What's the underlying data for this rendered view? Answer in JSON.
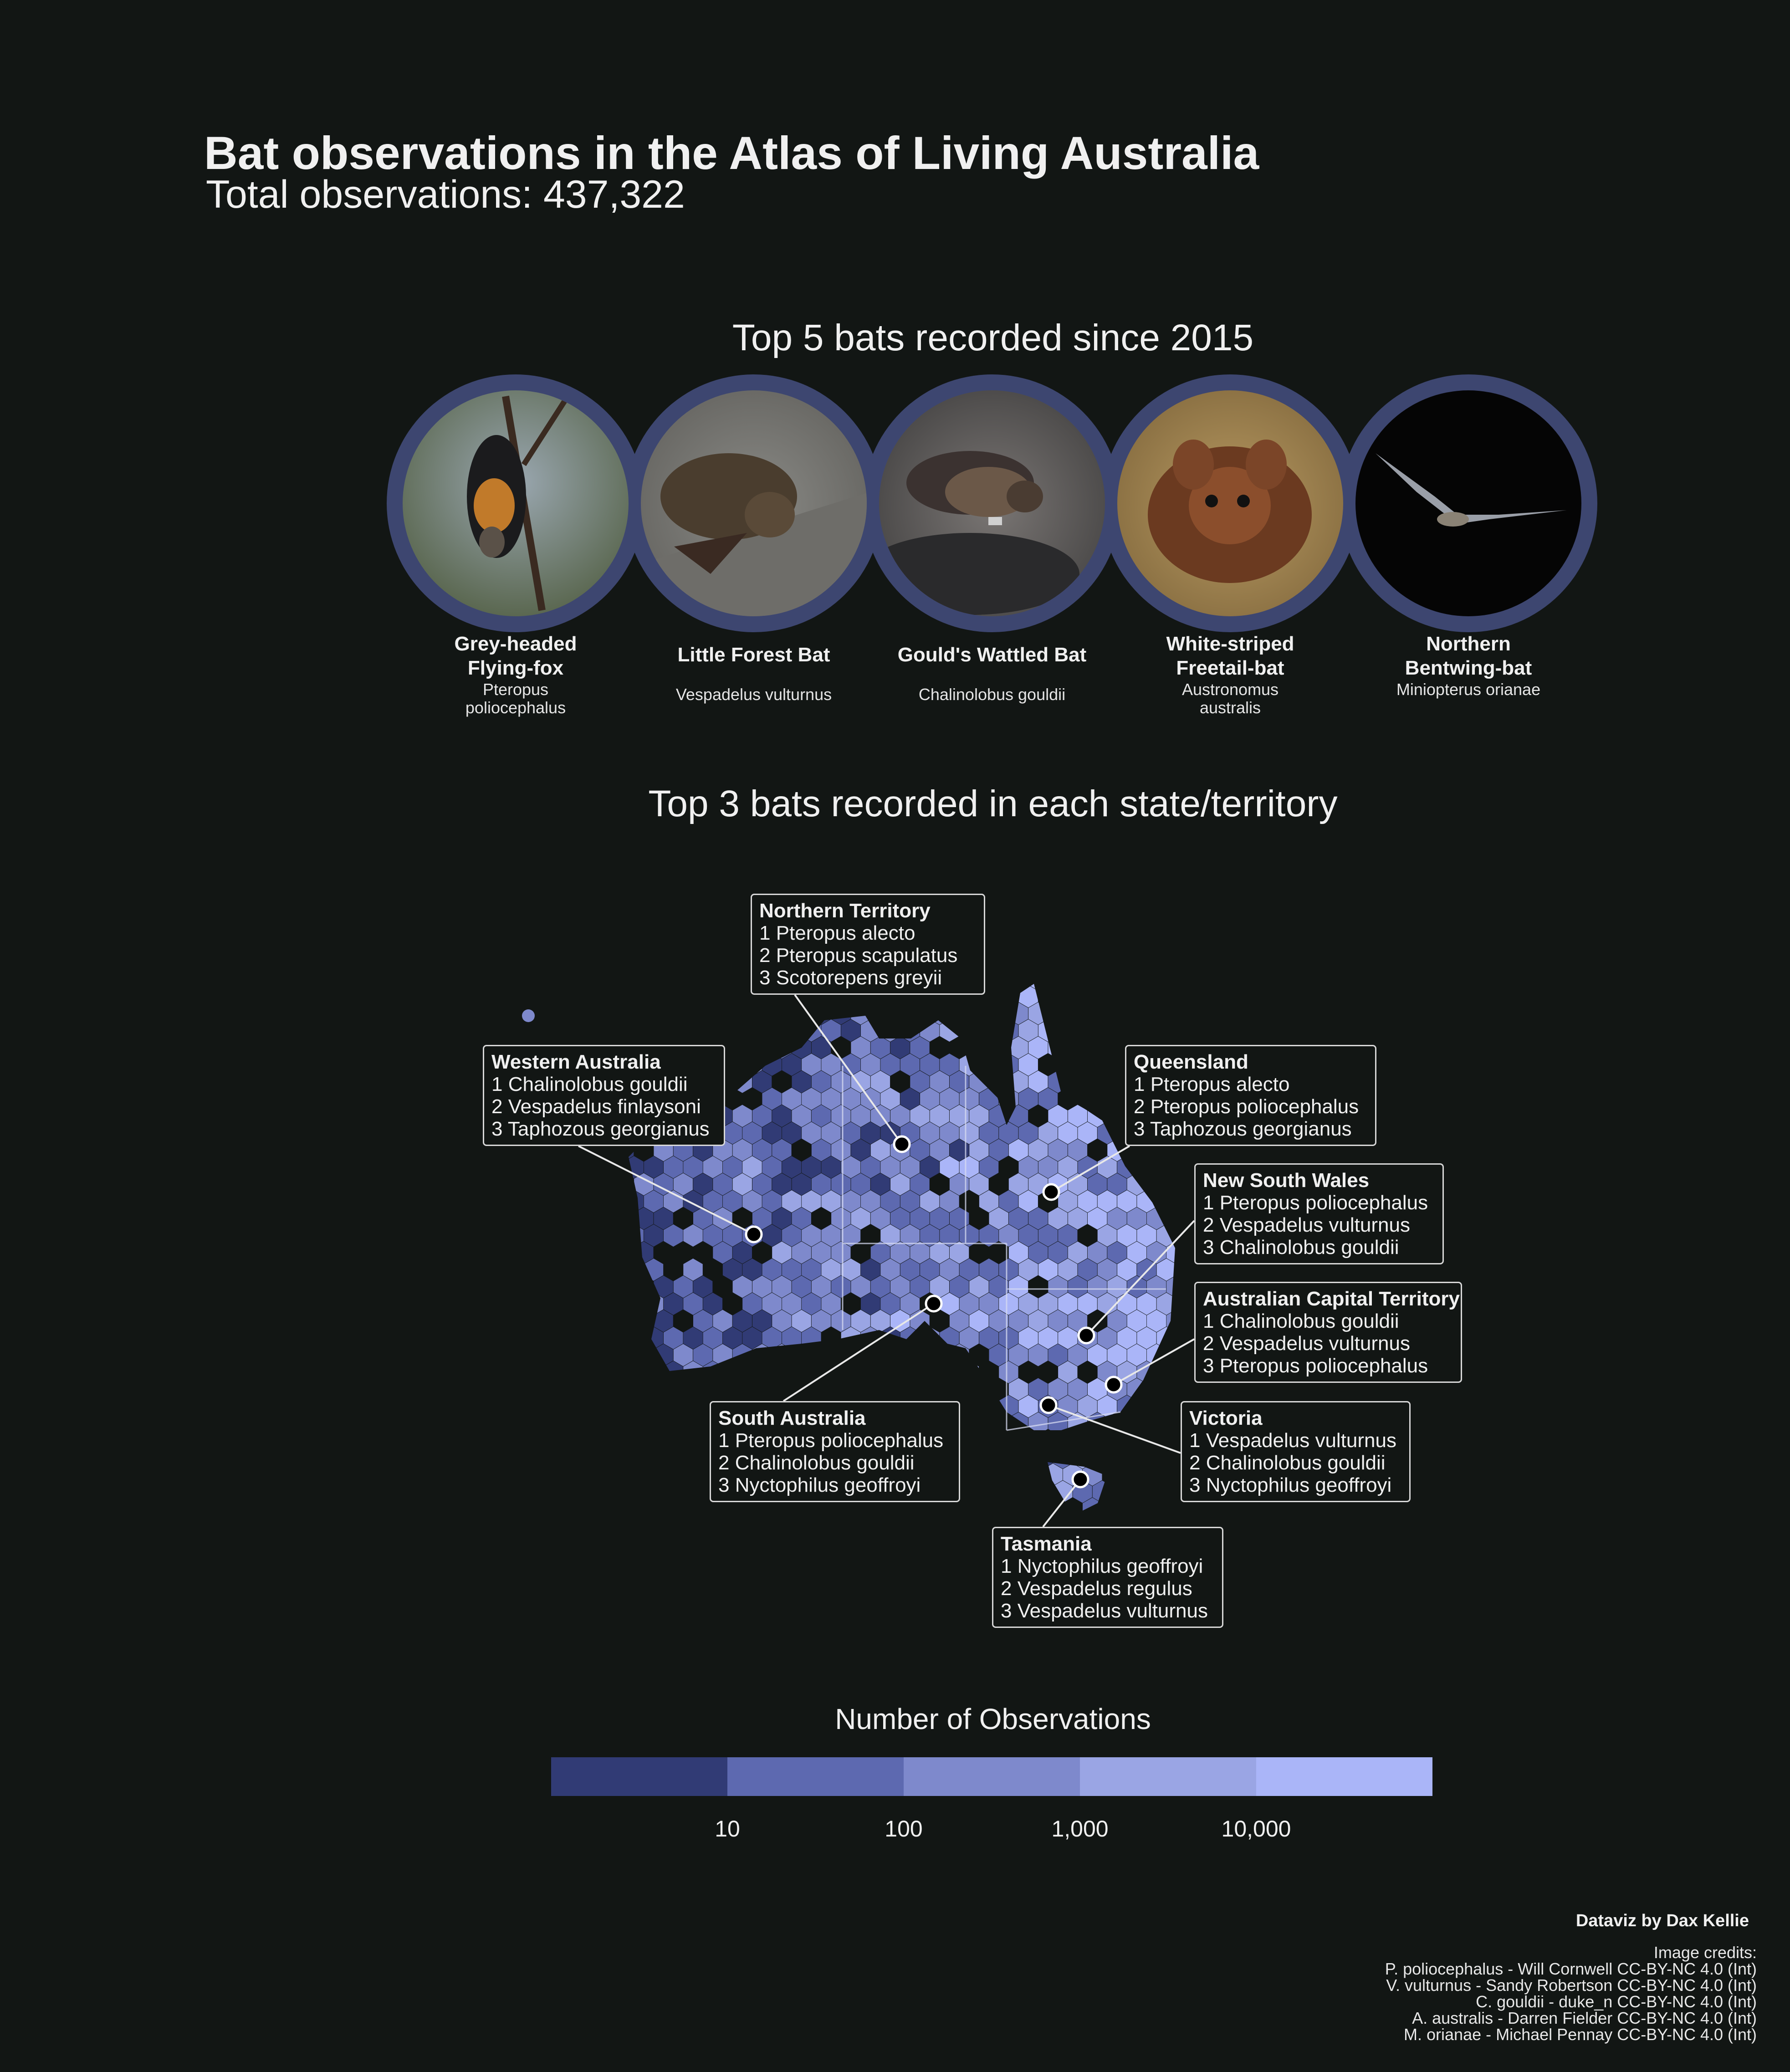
{
  "title": "Bat observations in the Atlas of Living Australia",
  "subtitle": "Total observations: 437,322",
  "top5_title": "Top 5 bats recorded since 2015",
  "state_title": "Top 3 bats recorded in each state/territory",
  "colors": {
    "background": "#121614",
    "ring": "#3d4670",
    "scale": [
      "#313b75",
      "#5d69b0",
      "#7e89cc",
      "#9aa5e4",
      "#aab5f8"
    ],
    "text": "#f0f0f0"
  },
  "top_bats": [
    {
      "name": "Grey-headed\nFlying-fox",
      "scientific": "Pteropus\npoliocephalus",
      "icon": "flying-fox-photo"
    },
    {
      "name": "Little Forest Bat",
      "scientific": "Vespadelus vulturnus",
      "icon": "forest-bat-photo"
    },
    {
      "name": "Gould's Wattled Bat",
      "scientific": "Chalinolobus gouldii",
      "icon": "wattled-bat-photo"
    },
    {
      "name": "White-striped\nFreetail-bat",
      "scientific": "Austronomus\naustralis",
      "icon": "freetail-bat-photo"
    },
    {
      "name": "Northern\nBentwing-bat",
      "scientific": "Miniopterus orianae",
      "icon": "bentwing-bat-photo"
    }
  ],
  "states": [
    {
      "name": "Northern Territory",
      "items": [
        "1 Pteropus alecto",
        "2 Pteropus scapulatus",
        "3 Scotorepens greyii"
      ]
    },
    {
      "name": "Western Australia",
      "items": [
        "1 Chalinolobus gouldii",
        "2 Vespadelus finlaysoni",
        "3 Taphozous georgianus"
      ]
    },
    {
      "name": "Queensland",
      "items": [
        "1 Pteropus alecto",
        "2 Pteropus poliocephalus",
        "3 Taphozous georgianus"
      ]
    },
    {
      "name": "New South Wales",
      "items": [
        "1 Pteropus poliocephalus",
        "2 Vespadelus vulturnus",
        "3 Chalinolobus gouldii"
      ]
    },
    {
      "name": "Australian Capital Territory",
      "items": [
        "1 Chalinolobus gouldii",
        "2 Vespadelus vulturnus",
        "3 Pteropus poliocephalus"
      ]
    },
    {
      "name": "South Australia",
      "items": [
        "1 Pteropus poliocephalus",
        "2 Chalinolobus gouldii",
        "3 Nyctophilus geoffroyi"
      ]
    },
    {
      "name": "Victoria",
      "items": [
        "1 Vespadelus vulturnus",
        "2 Chalinolobus gouldii",
        "3 Nyctophilus geoffroyi"
      ]
    },
    {
      "name": "Tasmania",
      "items": [
        "1 Nyctophilus geoffroyi",
        "2 Vespadelus regulus",
        "3 Vespadelus vulturnus"
      ]
    }
  ],
  "legend": {
    "title": "Number of Observations",
    "ticks": [
      "10",
      "100",
      "1,000",
      "10,000"
    ]
  },
  "chart_data": {
    "type": "heatmap",
    "title": "Top 3 bats recorded in each state/territory",
    "scale": "log",
    "legend_title": "Number of Observations",
    "breaks": [
      10,
      100,
      1000,
      10000
    ],
    "total_observations": 437322
  },
  "credits": {
    "dataviz": "Dataviz by Dax Kellie",
    "heading": "Image credits:",
    "lines": [
      "P. poliocephalus - Will Cornwell CC-BY-NC 4.0 (Int)",
      "V. vulturnus - Sandy Robertson CC-BY-NC 4.0 (Int)",
      "C. gouldii - duke_n CC-BY-NC 4.0 (Int)",
      "A. australis - Darren Fielder CC-BY-NC 4.0 (Int)",
      "M. orianae - Michael Pennay CC-BY-NC 4.0 (Int)"
    ]
  }
}
